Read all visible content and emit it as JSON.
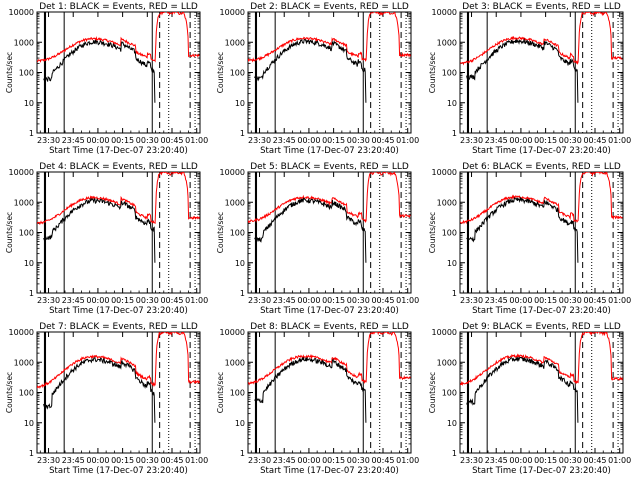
{
  "chart_data": {
    "type": "line",
    "layout": {
      "rows": 3,
      "cols": 3
    },
    "x_tick_labels": [
      "23:30",
      "23:45",
      "00:00",
      "00:15",
      "00:30",
      "00:45",
      "01:00"
    ],
    "x_axis_label": "Start Time (17-Dec-07 23:20:40)",
    "y_axis_label": "Counts/sec",
    "y_tick_labels": [
      "1",
      "10",
      "100",
      "1000",
      "10000"
    ],
    "y_scale": "log",
    "ylim": [
      1,
      10000
    ],
    "xlim_minutes_from_2330": [
      -7,
      92
    ],
    "series_colors": {
      "events": "#000000",
      "lld": "#ff0000"
    },
    "detectors": [
      {
        "title": "Det 1: BLACK = Events, RED = LLD",
        "events_base": 100,
        "lld_base": 230
      },
      {
        "title": "Det 2: BLACK = Events, RED = LLD",
        "events_base": 110,
        "lld_base": 240
      },
      {
        "title": "Det 3: BLACK = Events, RED = LLD",
        "events_base": 120,
        "lld_base": 190
      },
      {
        "title": "Det 4: BLACK = Events, RED = LLD",
        "events_base": 115,
        "lld_base": 190
      },
      {
        "title": "Det 5: BLACK = Events, RED = LLD",
        "events_base": 100,
        "lld_base": 220
      },
      {
        "title": "Det 6: BLACK = Events, RED = LLD",
        "events_base": 105,
        "lld_base": 200
      },
      {
        "title": "Det 7: BLACK = Events, RED = LLD",
        "events_base": 60,
        "lld_base": 140
      },
      {
        "title": "Det 8: BLACK = Events, RED = LLD",
        "events_base": 90,
        "lld_base": 190
      },
      {
        "title": "Det 9: BLACK = Events, RED = LLD",
        "events_base": 80,
        "lld_base": 180
      }
    ]
  }
}
